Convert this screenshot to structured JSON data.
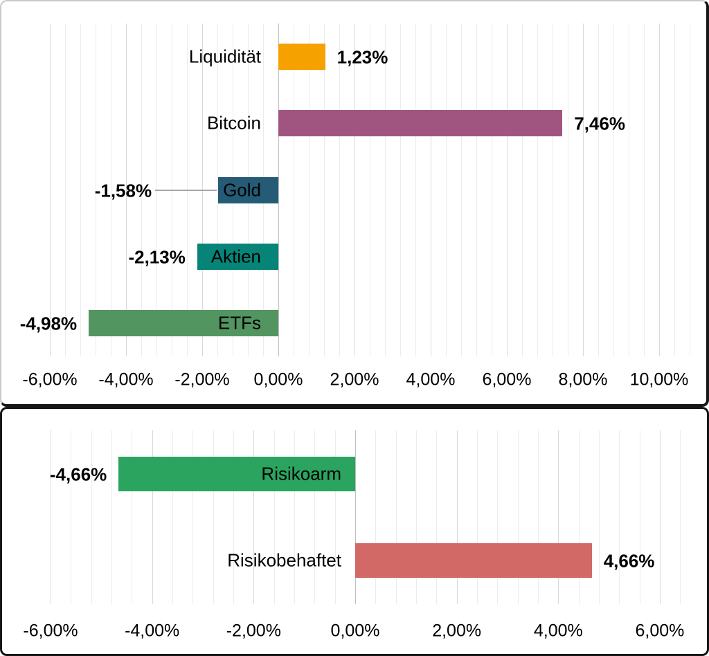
{
  "styles": {
    "background": "#FFFFFF",
    "text_color": "#000000",
    "grid_minor": "#ECECEC",
    "grid_major": "#D9D9D9",
    "axis_zero_line": "#BFBFBF",
    "leader_line": "#A6A6A6",
    "panel_border_dark": "#161616",
    "panel_border_light": "#C9C9C9"
  },
  "chart_data": [
    {
      "name": "asset-class-performance",
      "type": "bar",
      "orientation": "horizontal",
      "title": "",
      "xlabel": "",
      "ylabel": "",
      "legend": "none",
      "grid": "vertical, minor + major",
      "categories": [
        "Liquidität",
        "Bitcoin",
        "Gold",
        "Aktien",
        "ETFs"
      ],
      "values": [
        1.23,
        7.46,
        -1.58,
        -2.13,
        -4.98
      ],
      "value_labels": [
        "1,23%",
        "7,46%",
        "-1,58%",
        "-2,13%",
        "-4,98%"
      ],
      "bar_colors": [
        "#F5A100",
        "#A05581",
        "#265B76",
        "#078478",
        "#529561"
      ],
      "leader_lines": [
        false,
        false,
        true,
        false,
        false
      ],
      "xlim": [
        -6,
        10.8
      ],
      "major_unit": 2,
      "minor_unit": 0.4,
      "axis_ticks": [
        {
          "value": -6,
          "label": "-6,00%"
        },
        {
          "value": -4,
          "label": "-4,00%"
        },
        {
          "value": -2,
          "label": "-2,00%"
        },
        {
          "value": 0,
          "label": "0,00%"
        },
        {
          "value": 2,
          "label": "2,00%"
        },
        {
          "value": 4,
          "label": "4,00%"
        },
        {
          "value": 6,
          "label": "6,00%"
        },
        {
          "value": 8,
          "label": "8,00%"
        },
        {
          "value": 10,
          "label": "10,00%"
        }
      ]
    },
    {
      "name": "risk-split-performance",
      "type": "bar",
      "orientation": "horizontal",
      "title": "",
      "xlabel": "",
      "ylabel": "",
      "legend": "none",
      "grid": "vertical, minor + major",
      "categories": [
        "Risikoarm",
        "Risikobehaftet"
      ],
      "values": [
        -4.66,
        4.66
      ],
      "value_labels": [
        "-4,66%",
        "4,66%"
      ],
      "bar_colors": [
        "#2AA45F",
        "#D26966"
      ],
      "leader_lines": [
        false,
        false
      ],
      "xlim": [
        -6,
        6.4
      ],
      "major_unit": 2,
      "minor_unit": 0.4,
      "axis_ticks": [
        {
          "value": -6,
          "label": "-6,00%"
        },
        {
          "value": -4,
          "label": "-4,00%"
        },
        {
          "value": -2,
          "label": "-2,00%"
        },
        {
          "value": 0,
          "label": "0,00%"
        },
        {
          "value": 2,
          "label": "2,00%"
        },
        {
          "value": 4,
          "label": "4,00%"
        },
        {
          "value": 6,
          "label": "6,00%"
        }
      ]
    }
  ]
}
